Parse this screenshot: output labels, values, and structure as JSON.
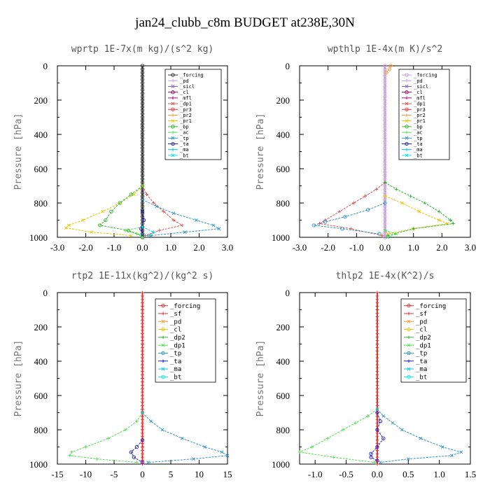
{
  "figure_title": "jan24_clubb_c8m  BUDGET at238E,30N",
  "chart_data": [
    {
      "type": "line",
      "title": "wprtp  1E-7x(m kg)/(s^2 kg)",
      "ylabel": "Pressure [hPa]",
      "xlim": [
        -3.0,
        3.0
      ],
      "ylim": [
        1000,
        0
      ],
      "xticks": [
        "-3.0",
        "-2.0",
        "-1.0",
        "0.0",
        "1.0",
        "2.0",
        "3.0"
      ],
      "xtick_values": [
        -3,
        -2,
        -1,
        0,
        1,
        2,
        3
      ],
      "yticks": [
        "0",
        "200",
        "400",
        "600",
        "800",
        "1000"
      ],
      "ytick_values": [
        0,
        200,
        400,
        600,
        800,
        1000
      ],
      "legend": [
        "_forcing",
        "_pd",
        "_sicl",
        "_cl",
        "_mfl",
        "_dp1",
        "_pr3",
        "_pr2",
        "_pr1",
        "_bp",
        "_ac",
        "_tp",
        "_ta",
        "_ma",
        "_bt"
      ],
      "legend_colors": [
        "#333333",
        "#c8a0dc",
        "#8c64c8",
        "#96005a",
        "#c80064",
        "#e05050",
        "#ff3030",
        "#ff9930",
        "#e6c800",
        "#32b432",
        "#50e050",
        "#3296c8",
        "#2020c8",
        "#00c8dc",
        "#00e6e6"
      ],
      "legend_position": "top-right",
      "series": [
        {
          "name": "_forcing",
          "p": [
            0,
            200,
            400,
            600,
            800,
            1000
          ],
          "values": [
            0,
            0,
            0,
            0,
            0,
            0
          ]
        },
        {
          "name": "_dp1",
          "p": [
            700,
            750,
            800,
            850,
            900,
            930,
            960,
            990
          ],
          "values": [
            0,
            0.15,
            0.4,
            0.75,
            1.1,
            1.4,
            0.6,
            0.1
          ]
        },
        {
          "name": "_pr1",
          "p": [
            700,
            750,
            800,
            850,
            900,
            930,
            945,
            970,
            990
          ],
          "values": [
            0,
            -0.3,
            -0.8,
            -1.4,
            -2.1,
            -2.6,
            -2.7,
            -1.8,
            -0.4
          ]
        },
        {
          "name": "_bp",
          "p": [
            700,
            750,
            800,
            850,
            900,
            930,
            960,
            990
          ],
          "values": [
            0,
            -0.4,
            -0.8,
            -1.1,
            -1.3,
            -1.5,
            -0.5,
            0
          ]
        },
        {
          "name": "_ac",
          "p": [
            940,
            960,
            980,
            1000
          ],
          "values": [
            0,
            -0.6,
            -0.2,
            0
          ]
        },
        {
          "name": "_tp",
          "p": [
            780,
            820,
            860,
            900,
            930,
            950,
            970,
            990
          ],
          "values": [
            0,
            0.5,
            1.1,
            1.9,
            2.5,
            2.7,
            1.5,
            0.3
          ]
        },
        {
          "name": "_ta",
          "p": [
            850,
            900,
            950,
            980
          ],
          "values": [
            0,
            0.05,
            -0.05,
            0
          ]
        },
        {
          "name": "_ma",
          "p": [
            940,
            970,
            990
          ],
          "values": [
            0,
            0.4,
            0.2
          ]
        }
      ]
    },
    {
      "type": "line",
      "title": "wpthlp  1E-4x(m K)/s^2",
      "ylabel": "Pressure [hPa]",
      "xlim": [
        -3.0,
        3.0
      ],
      "ylim": [
        1000,
        0
      ],
      "xticks": [
        "-3.0",
        "-2.0",
        "-1.0",
        "0.0",
        "1.0",
        "2.0",
        "3.0"
      ],
      "xtick_values": [
        -3,
        -2,
        -1,
        0,
        1,
        2,
        3
      ],
      "yticks": [
        "0",
        "200",
        "400",
        "600",
        "800",
        "1000"
      ],
      "ytick_values": [
        0,
        200,
        400,
        600,
        800,
        1000
      ],
      "legend": [
        "_forcing",
        "_pd",
        "_sicl",
        "_cl",
        "_mfl",
        "_dp1",
        "_pr3",
        "_pr2",
        "_pr1",
        "_bp",
        "_ac",
        "_tp",
        "_ta",
        "_ma",
        "_bt"
      ],
      "legend_colors": [
        "#c8a0dc",
        "#c8a0dc",
        "#8c64c8",
        "#96005a",
        "#c80064",
        "#e05050",
        "#ff3030",
        "#ff9930",
        "#e6c800",
        "#32b432",
        "#50e050",
        "#3296c8",
        "#2020c8",
        "#00c8dc",
        "#00e6e6"
      ],
      "legend_position": "top-right",
      "series": [
        {
          "name": "_forcing",
          "p": [
            0,
            200,
            400,
            600,
            800,
            1000
          ],
          "values": [
            0,
            0,
            0,
            0,
            0,
            0
          ]
        },
        {
          "name": "_dp1",
          "p": [
            680,
            720,
            760,
            800,
            850,
            900,
            920,
            950,
            990
          ],
          "values": [
            0,
            -0.3,
            -0.7,
            -1.1,
            -1.6,
            -2.1,
            -2.3,
            -1.2,
            -0.1
          ]
        },
        {
          "name": "_pr1",
          "p": [
            760,
            800,
            850,
            900,
            920,
            950,
            980
          ],
          "values": [
            0,
            0.6,
            1.2,
            1.9,
            2.2,
            1.0,
            0.1
          ]
        },
        {
          "name": "_pr2",
          "p": [
            0,
            20,
            40
          ],
          "values": [
            0.2,
            0.15,
            0.05
          ]
        },
        {
          "name": "_bp",
          "p": [
            680,
            720,
            760,
            800,
            850,
            900,
            920,
            950,
            990
          ],
          "values": [
            0,
            0.4,
            0.9,
            1.4,
            1.9,
            2.3,
            2.4,
            1.0,
            0.1
          ]
        },
        {
          "name": "_ac",
          "p": [
            960,
            980,
            1000
          ],
          "values": [
            0,
            0.4,
            0.1
          ]
        },
        {
          "name": "_tp",
          "p": [
            800,
            840,
            880,
            910,
            930,
            950,
            980
          ],
          "values": [
            0,
            -0.6,
            -1.4,
            -2.1,
            -2.5,
            -1.5,
            -0.2
          ]
        }
      ]
    },
    {
      "type": "line",
      "title": "rtp2  1E-11x(kg^2)/(kg^2 s)",
      "ylabel": "Pressure [hPa]",
      "xlim": [
        -15,
        15
      ],
      "ylim": [
        1000,
        0
      ],
      "xticks": [
        "-15",
        "-10",
        "-5",
        "0",
        "5",
        "10",
        "15"
      ],
      "xtick_values": [
        -15,
        -10,
        -5,
        0,
        5,
        10,
        15
      ],
      "yticks": [
        "0",
        "200",
        "400",
        "600",
        "800",
        "1000"
      ],
      "ytick_values": [
        0,
        200,
        400,
        600,
        800,
        1000
      ],
      "legend": [
        "_forcing",
        "_sf",
        "_pd",
        "_cl",
        "_dp2",
        "_dp1",
        "_tp",
        "_ta",
        "_ma",
        "_bt"
      ],
      "legend_colors": [
        "#e03030",
        "#e03030",
        "#ff9930",
        "#e6c800",
        "#32b432",
        "#50e050",
        "#3296c8",
        "#2020c8",
        "#00c8dc",
        "#00e6e6"
      ],
      "legend_position": "top-right",
      "series": [
        {
          "name": "_forcing",
          "p": [
            0,
            200,
            400,
            600,
            800,
            1000
          ],
          "values": [
            0,
            0,
            0,
            0,
            0,
            0
          ]
        },
        {
          "name": "_dp1",
          "p": [
            700,
            750,
            800,
            850,
            900,
            930,
            950,
            970,
            990
          ],
          "values": [
            0,
            -1,
            -3,
            -6,
            -10,
            -12.5,
            -12.8,
            -8,
            -1
          ]
        },
        {
          "name": "_tp",
          "p": [
            700,
            750,
            800,
            850,
            900,
            930,
            950,
            970,
            990
          ],
          "values": [
            0,
            1.5,
            3.5,
            7,
            11,
            14,
            15,
            9,
            1
          ]
        },
        {
          "name": "_ta",
          "p": [
            860,
            900,
            930,
            960,
            990
          ],
          "values": [
            0,
            -1,
            -2,
            -1.5,
            0
          ]
        }
      ]
    },
    {
      "type": "line",
      "title": "thlp2  1E-4x(K^2)/s",
      "ylabel": "Pressure [hPa]",
      "xlim": [
        -1.25,
        1.5
      ],
      "ylim": [
        1000,
        0
      ],
      "xticks": [
        "-1.0",
        "-0.5",
        "0.0",
        "0.5",
        "1.0",
        "1.5"
      ],
      "xtick_values": [
        -1.0,
        -0.5,
        0.0,
        0.5,
        1.0,
        1.5
      ],
      "yticks": [
        "0",
        "200",
        "400",
        "600",
        "800",
        "1000"
      ],
      "ytick_values": [
        0,
        200,
        400,
        600,
        800,
        1000
      ],
      "legend": [
        "_forcing",
        "_sf",
        "_pd",
        "_cl",
        "_dp2",
        "_dp1",
        "_tp",
        "_ta",
        "_ma",
        "_bt"
      ],
      "legend_colors": [
        "#e03030",
        "#e03030",
        "#ff9930",
        "#e6c800",
        "#32b432",
        "#50e050",
        "#3296c8",
        "#2020c8",
        "#00c8dc",
        "#00e6e6"
      ],
      "legend_position": "top-right",
      "series": [
        {
          "name": "_forcing",
          "p": [
            0,
            200,
            400,
            600,
            800,
            1000
          ],
          "values": [
            0,
            0,
            0,
            0,
            0,
            0
          ]
        },
        {
          "name": "_dp1",
          "p": [
            680,
            720,
            760,
            800,
            850,
            900,
            930,
            960,
            990
          ],
          "values": [
            0,
            -0.15,
            -0.35,
            -0.55,
            -0.8,
            -1.05,
            -1.25,
            -0.7,
            -0.05
          ]
        },
        {
          "name": "_tp",
          "p": [
            680,
            720,
            760,
            800,
            850,
            900,
            930,
            950,
            970,
            990
          ],
          "values": [
            0,
            0.1,
            0.25,
            0.4,
            0.7,
            1.05,
            1.35,
            1.2,
            0.5,
            0.05
          ]
        },
        {
          "name": "_ta",
          "p": [
            700,
            750,
            800,
            850,
            900,
            940,
            960,
            980
          ],
          "values": [
            0,
            0.05,
            0.0,
            0.1,
            0.0,
            -0.1,
            -0.1,
            0
          ]
        }
      ]
    }
  ]
}
